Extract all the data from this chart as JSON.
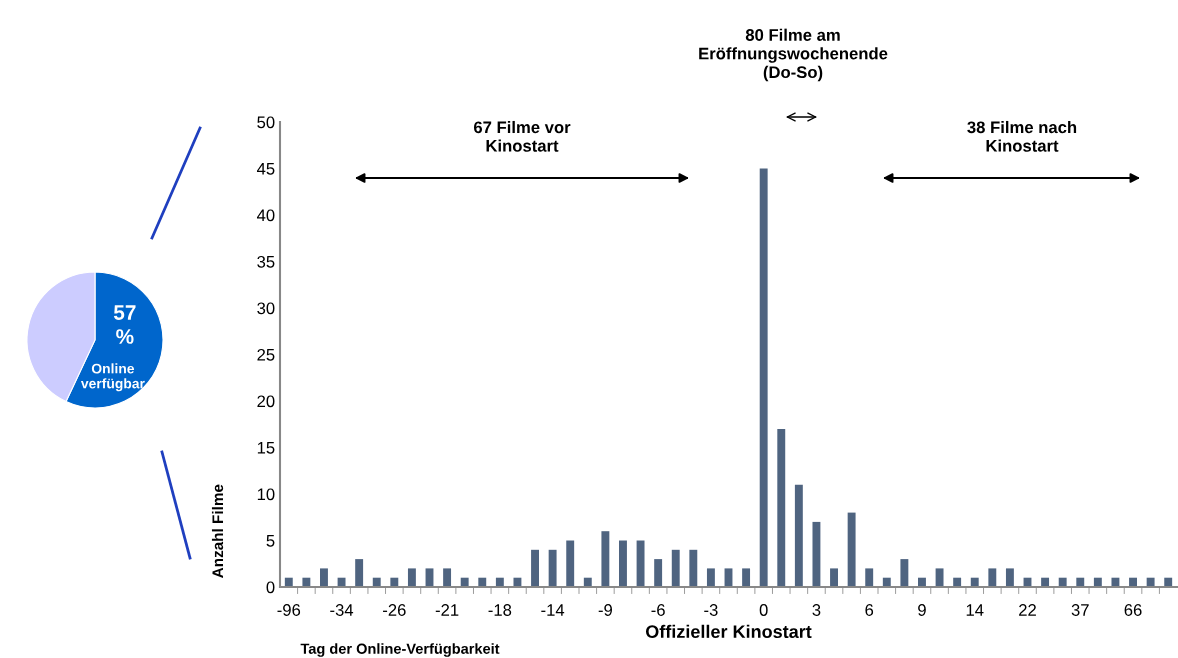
{
  "chart_data": [
    {
      "type": "pie",
      "categories": [
        "Online verfügbar",
        null
      ],
      "values": [
        57,
        43
      ],
      "colors": [
        "#0066cc",
        "#ccccff"
      ],
      "value_labels": [
        "57 %",
        null
      ]
    },
    {
      "type": "bar",
      "xlabel": "Offizieller Kinostart",
      "ylabel": "Anzahl Filme",
      "annotations": [
        "67 Filme vor Kinostart",
        "80 Filme am Eröffnungswochenende (Do-So)",
        "38 Filme nach Kinostart",
        "Tag der Online-Verfügbarkeit"
      ],
      "categories": [
        "-96",
        null,
        null,
        "-34",
        null,
        null,
        "-26",
        null,
        null,
        "-21",
        null,
        null,
        "-18",
        null,
        null,
        "-14",
        null,
        null,
        "-9",
        null,
        null,
        "-6",
        null,
        null,
        "-3",
        null,
        null,
        "0",
        null,
        null,
        "3",
        null,
        null,
        "6",
        null,
        null,
        "9",
        null,
        null,
        "14",
        null,
        null,
        "22",
        null,
        null,
        "37",
        null,
        null,
        "66",
        null,
        null
      ],
      "values": [
        1,
        1,
        2,
        1,
        3,
        1,
        1,
        2,
        2,
        2,
        1,
        1,
        1,
        1,
        4,
        4,
        5,
        1,
        6,
        5,
        5,
        3,
        4,
        4,
        2,
        2,
        2,
        45,
        17,
        11,
        7,
        2,
        8,
        2,
        1,
        3,
        1,
        2,
        1,
        1,
        2,
        2,
        1,
        1,
        1,
        1,
        1,
        1,
        1,
        1,
        1
      ],
      "color": "#4f6480",
      "ylim": [
        0,
        50
      ],
      "yticks": [
        0,
        5,
        10,
        15,
        20,
        25,
        30,
        35,
        40,
        45,
        50
      ],
      "grid": false,
      "legend": false
    }
  ]
}
